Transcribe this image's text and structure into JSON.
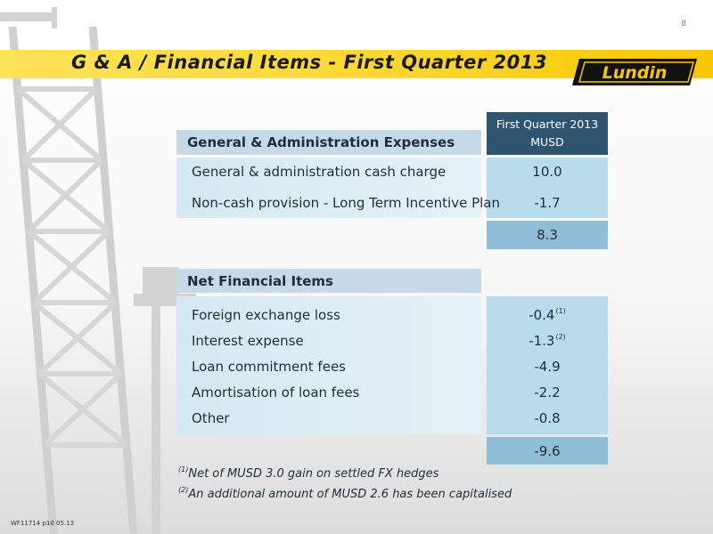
{
  "page_number": "8",
  "title": "G & A / Financial Items - First Quarter 2013",
  "logo_text": "Lundin",
  "footer_code": "WF11714 p10 05.13",
  "column_header": {
    "line1": "First Quarter 2013",
    "line2": "MUSD"
  },
  "ga_section": {
    "header": "General & Administration Expenses",
    "rows": [
      {
        "label": "General & administration cash charge",
        "value": "10.0"
      },
      {
        "label": "Non-cash provision - Long Term Incentive Plan",
        "value": "-1.7"
      }
    ],
    "total": "8.3"
  },
  "fin_section": {
    "header": "Net Financial Items",
    "rows": [
      {
        "label": "Foreign exchange loss",
        "value": "-0.4",
        "note": "(1)"
      },
      {
        "label": "Interest expense",
        "value": "-1.3",
        "note": "(2)"
      },
      {
        "label": "Loan commitment fees",
        "value": "-4.9"
      },
      {
        "label": "Amortisation of loan fees",
        "value": "-2.2"
      },
      {
        "label": "Other",
        "value": "-0.8"
      }
    ],
    "total": "-9.6"
  },
  "footnotes": [
    {
      "marker": "(1)",
      "text": "Net of MUSD 3.0 gain on settled FX hedges"
    },
    {
      "marker": "(2)",
      "text": "An additional amount of MUSD 2.6 has been capitalised"
    }
  ],
  "colors": {
    "title_band": "#fbd62b",
    "header_dark": "#2f5470",
    "header_light": "#c6d9e6",
    "value_panel": "#b9dcec",
    "total_cell": "#8fbfd7",
    "logo_black": "#111111",
    "logo_yellow": "#f9c700"
  }
}
